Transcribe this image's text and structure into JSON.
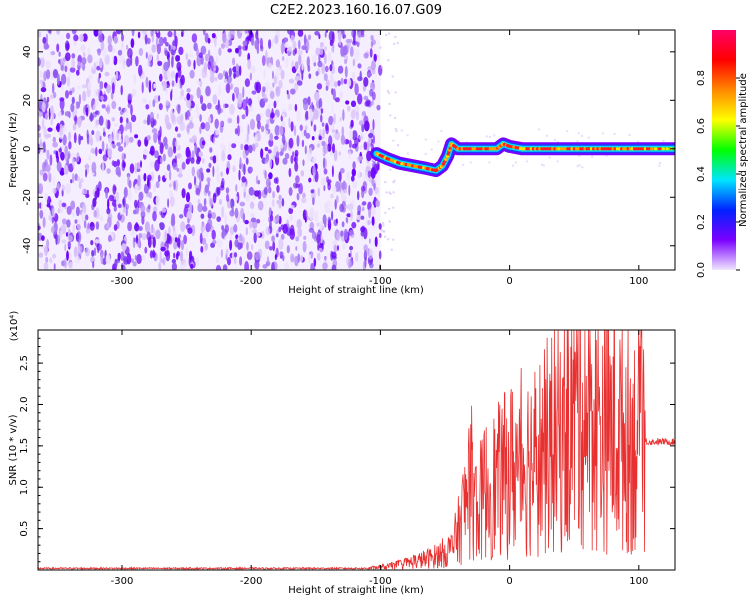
{
  "title": "C2E2.2023.160.16.07.G09",
  "chart_data": [
    {
      "type": "heatmap",
      "xlabel": "Height of straight line (km)",
      "ylabel": "Frequency (Hz)",
      "xlim": [
        -365,
        128
      ],
      "ylim": [
        -50,
        49
      ],
      "xticks": [
        -300,
        -200,
        -100,
        0,
        100
      ],
      "yticks": [
        -40,
        -20,
        0,
        20,
        40
      ],
      "colorbar": {
        "label": "Normalized spectral amplitude",
        "range": [
          0.0,
          1.0
        ],
        "ticks": [
          0.0,
          0.2,
          0.4,
          0.6,
          0.8
        ],
        "colormap": [
          "#f0e6ff",
          "#7a00ff",
          "#0022ff",
          "#00e5ff",
          "#00ff00",
          "#ffff00",
          "#ff8800",
          "#ff0000",
          "#ff0066"
        ]
      },
      "noise_region_x": [
        -365,
        -100
      ],
      "track": {
        "x": [
          -103,
          -95,
          -85,
          -75,
          -65,
          -57,
          -52,
          -48,
          -45,
          -40,
          -30,
          -20,
          -10,
          -5,
          0,
          10,
          20,
          30,
          40,
          50,
          60,
          70,
          80,
          90,
          100,
          110,
          128
        ],
        "freq_hz": [
          -2,
          -4,
          -6,
          -7,
          -8,
          -9,
          -7,
          -3,
          2,
          0,
          0,
          0,
          0,
          2,
          1,
          0,
          0,
          0,
          0,
          0,
          0,
          0,
          0,
          0,
          0,
          0,
          0
        ]
      }
    },
    {
      "type": "line",
      "xlabel": "Height of straight line (km)",
      "ylabel": "SNR (10 * v/v)",
      "y_scale_label": "(x10⁴)",
      "xlim": [
        -365,
        128
      ],
      "ylim": [
        0,
        2.9
      ],
      "xticks": [
        -300,
        -200,
        -100,
        0,
        100
      ],
      "yticks": [
        0.5,
        1.0,
        1.5,
        2.0,
        2.5
      ],
      "color": "#e83030",
      "envelope": {
        "x": [
          -365,
          -110,
          -95,
          -80,
          -60,
          -45,
          -40,
          -35,
          -30,
          -25,
          -20,
          -10,
          0,
          10,
          20,
          30,
          40,
          50,
          55,
          60,
          70,
          80,
          90,
          100,
          105,
          110,
          128
        ],
        "y": [
          0.02,
          0.02,
          0.04,
          0.08,
          0.15,
          0.25,
          0.45,
          0.75,
          1.1,
          0.7,
          0.95,
          1.05,
          1.2,
          1.3,
          1.35,
          1.5,
          1.6,
          1.9,
          2.1,
          1.85,
          1.75,
          1.7,
          1.6,
          1.55,
          1.55,
          1.55,
          1.55
        ]
      }
    }
  ]
}
